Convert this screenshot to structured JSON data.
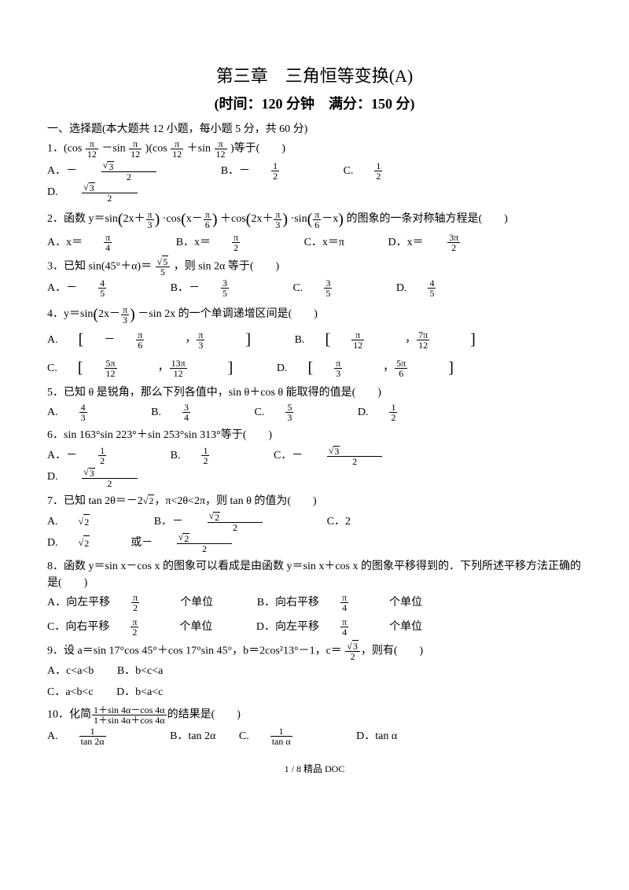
{
  "title": "第三章　三角恒等变换(A)",
  "subtitle": "(时间：120 分钟　满分：150 分)",
  "section": "一、选择题(本大题共 12 小题，每小题 5 分，共 60 分)",
  "q1": {
    "stem_a": "1．(cos ",
    "stem_b": "－sin ",
    "stem_c": ")(cos ",
    "stem_d": "＋sin ",
    "stem_e": ")等于(　　)",
    "pi": "π",
    "twelve": "12",
    "optA": "A．－",
    "optB": "B．－",
    "optC": "C.",
    "optD": "D.",
    "r3": "3",
    "n1": "1",
    "n2": "2"
  },
  "q2": {
    "stem_a": "2．函数 y＝sin",
    "stem_b": "·cos",
    "stem_c": "＋cos",
    "stem_d": "·sin",
    "stem_e": "的图象的一条对称轴方程是(　　)",
    "e1a": "2x＋",
    "e1b": "π",
    "e1c": "3",
    "e2a": "x－",
    "e2b": "π",
    "e2c": "6",
    "e3a": "π",
    "e3b": "6",
    "e3c": "－x",
    "optA": "A．x＝",
    "pi4n": "π",
    "pi4d": "4",
    "optB": "B．x＝",
    "pi2n": "π",
    "pi2d": "2",
    "optC": "C．x＝π",
    "optD": "D．x＝",
    "pi32n": "3π",
    "pi32d": "2"
  },
  "q3": {
    "stem_a": "3．已知 sin(45°＋α)＝",
    "stem_b": "，则 sin 2α 等于(　　)",
    "r5": "5",
    "five": "5",
    "optA": "A．－",
    "n4": "4",
    "d5": "5",
    "optB": "B．－",
    "n3": "3",
    "optC": "C.",
    "optD": "D."
  },
  "q4": {
    "stem_a": "4．y＝sin",
    "stem_b": "－sin 2x 的一个单调递增区间是(　　)",
    "e1": "2x－",
    "pi": "π",
    "three": "3",
    "optA": "A.",
    "An1": "π",
    "Ad1": "6",
    "An2": "π",
    "Ad2": "3",
    "neg": "－",
    "optB": "B.",
    "Bn1": "π",
    "Bd1": "12",
    "Bn2": "7π",
    "Bd2": "12",
    "optC": "C.",
    "Cn1": "5π",
    "Cd1": "12",
    "Cn2": "13π",
    "Cd2": "12",
    "optD": "D.",
    "Dn1": "π",
    "Dd1": "3",
    "Dn2": "5π",
    "Dd2": "6"
  },
  "q5": {
    "stem": "5．已知 θ 是锐角，那么下列各值中，sin θ＋cos θ 能取得的值是(　　)",
    "optA": "A.",
    "An": "4",
    "Ad": "3",
    "optB": "B.",
    "Bn": "3",
    "Bd": "4",
    "optC": "C.",
    "Cn": "5",
    "Cd": "3",
    "optD": "D.",
    "Dn": "1",
    "Dd": "2"
  },
  "q6": {
    "stem": "6．sin 163°sin 223°＋sin 253°sin 313°等于(　　)",
    "optA": "A．－",
    "n1": "1",
    "d2": "2",
    "optB": "B.",
    "optC": "C．－",
    "r3": "3",
    "optD": "D."
  },
  "q7": {
    "stem_a": "7．已知 tan 2θ＝－2",
    "stem_b": "，π<2θ<2π，则 tan θ 的值为(　　)",
    "r2": "2",
    "optA": "A.",
    "optB": "B．－",
    "Bn": "2",
    "Bd": "2",
    "optC": "C．2",
    "optD": "D.",
    "Dtext": "或－"
  },
  "q8": {
    "stem": "8．函数 y＝sin x－cos x 的图象可以看成是由函数 y＝sin x＋cos x 的图象平移得到的．下列所述平移方法正确的是(　　)",
    "optA": "A．向左平移",
    "Aend": "个单位",
    "pi": "π",
    "two": "2",
    "optB": "B．向右平移",
    "four": "4",
    "optC": "C．向右平移",
    "optD": "D．向左平移"
  },
  "q9": {
    "stem_a": "9．设 a＝sin 17°cos 45°＋cos 17°sin 45°，b＝2cos²13°－1，c＝",
    "stem_b": "，则有(　　)",
    "r3": "3",
    "two": "2",
    "optA": "A．c<a<b",
    "optB": "B．b<c<a",
    "optC": "C．a<b<c",
    "optD": "D．b<a<c"
  },
  "q10": {
    "stem_a": "10．化简",
    "stem_b": "的结果是(　　)",
    "num": "1＋sin 4α－cos 4α",
    "den": "1＋sin 4α＋cos 4α",
    "optA": "A.",
    "An": "1",
    "Ad": "tan 2α",
    "optB": "B．tan 2α",
    "optC": "C.",
    "Cn": "1",
    "Cd": "tan α",
    "optD": "D．tan α"
  },
  "footer": "1 / 8 精品 DOC"
}
